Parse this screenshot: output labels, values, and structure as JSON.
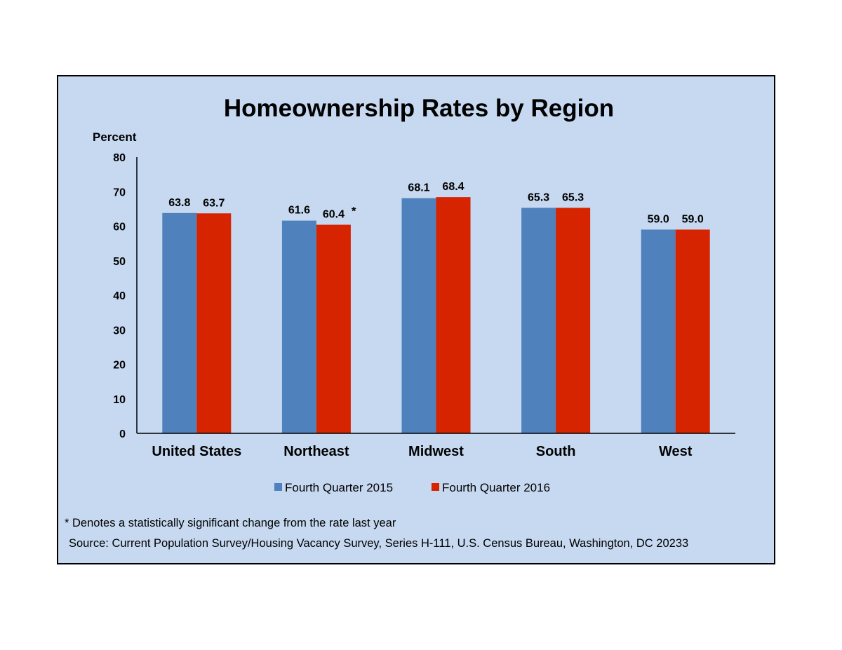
{
  "chart_data": {
    "type": "bar",
    "title": "Homeownership Rates by Region",
    "ylabel": "Percent",
    "xlabel": "",
    "ylim": [
      0,
      80
    ],
    "yticks": [
      "0",
      "10",
      "20",
      "30",
      "40",
      "50",
      "60",
      "70",
      "80"
    ],
    "categories": [
      "United States",
      "Northeast",
      "Midwest",
      "South",
      "West"
    ],
    "series": [
      {
        "name": "Fourth Quarter 2015",
        "color": "#4F81BD",
        "values": [
          63.8,
          61.6,
          68.1,
          65.3,
          59.0
        ],
        "labels": [
          "63.8",
          "61.6",
          "68.1",
          "65.3",
          "59.0"
        ]
      },
      {
        "name": "Fourth Quarter 2016",
        "color": "#D62300",
        "values": [
          63.7,
          60.4,
          68.4,
          65.3,
          59.0
        ],
        "labels": [
          "63.7",
          "60.4",
          "68.4",
          "65.3",
          "59.0"
        ]
      }
    ],
    "annotations": [
      {
        "series": 1,
        "category": 1,
        "text": "*"
      }
    ],
    "legend_position": "bottom",
    "grid": false,
    "background_color": "#C6D9F1"
  },
  "footnote": "* Denotes a statistically significant change from the rate last year",
  "source": "Source: Current Population Survey/Housing Vacancy Survey, Series H-111, U.S. Census Bureau, Washington, DC 20233"
}
